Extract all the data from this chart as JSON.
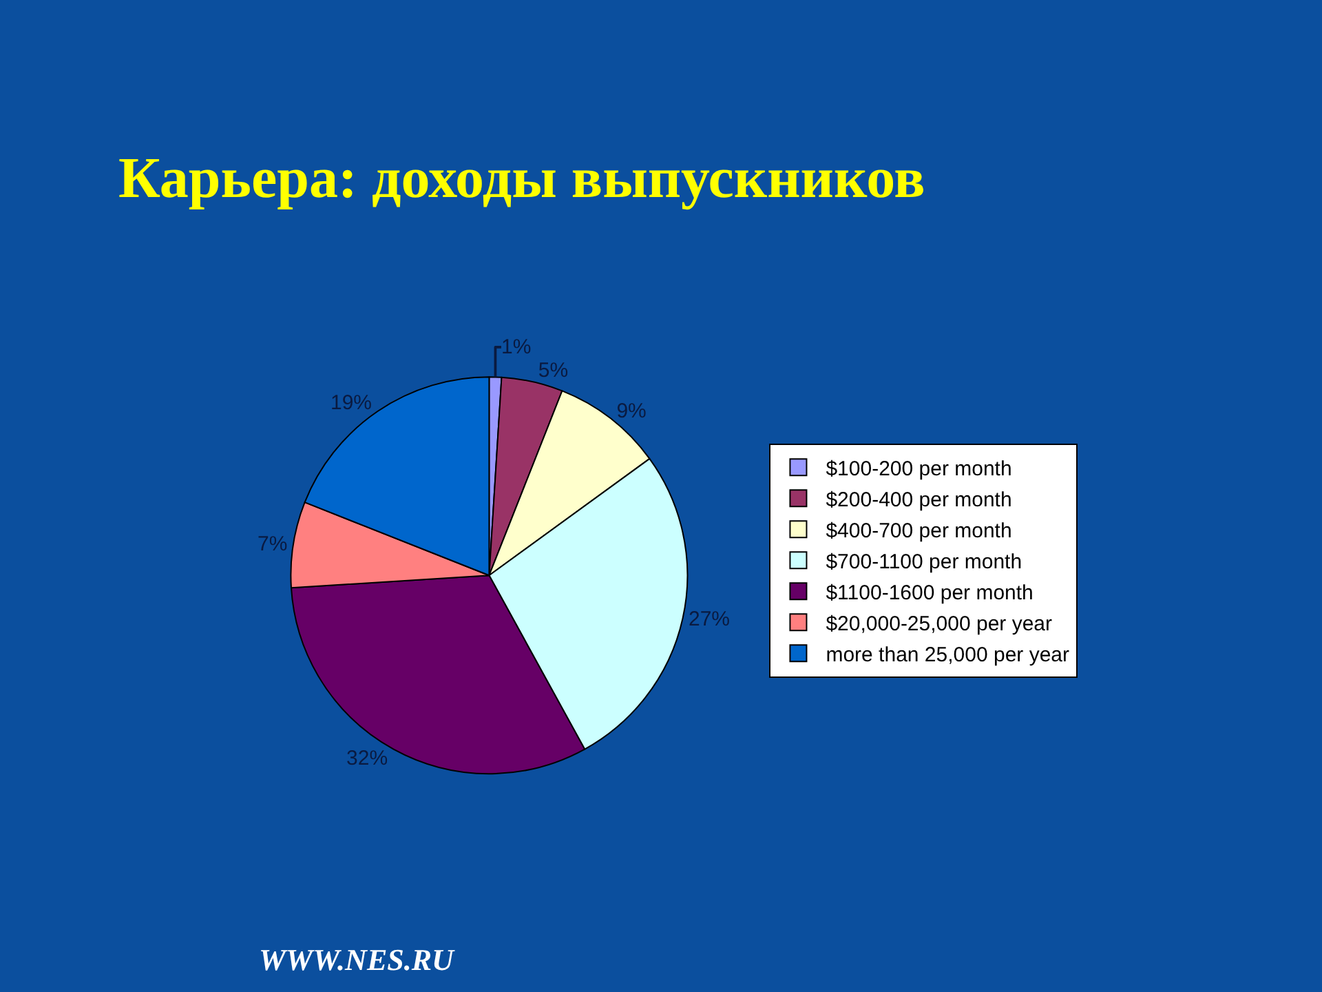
{
  "chart_data": {
    "type": "pie",
    "title": "Карьера: доходы выпускников",
    "categories": [
      "$100-200 per month",
      "$200-400 per month",
      "$400-700 per month",
      "$700-1100 per month",
      "$1100-1600 per month",
      "$20,000-25,000 per year",
      "more than 25,000 per year"
    ],
    "values": [
      1,
      5,
      9,
      27,
      32,
      7,
      19
    ],
    "value_labels": [
      "1%",
      "5%",
      "9%",
      "27%",
      "32%",
      "7%",
      "19%"
    ],
    "colors": [
      "#9999ff",
      "#993366",
      "#ffffcc",
      "#ccffff",
      "#660066",
      "#ff8080",
      "#0066cc"
    ],
    "legend": "right",
    "annotations": [
      "WWW.NES.RU"
    ]
  }
}
